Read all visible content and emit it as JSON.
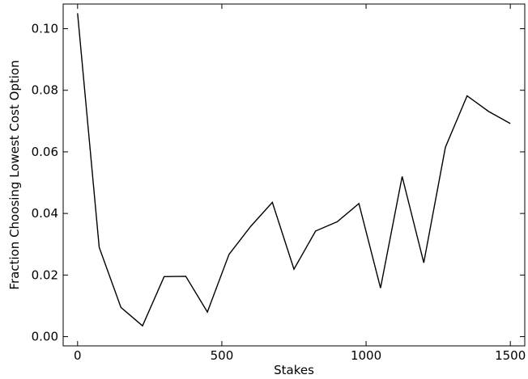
{
  "chart_data": {
    "type": "line",
    "title": "",
    "xlabel": "Stakes",
    "ylabel": "Fraction Choosing Lowest Cost Option",
    "xlim": [
      -50,
      1550
    ],
    "ylim": [
      -0.003,
      0.108
    ],
    "grid": false,
    "legend": "none",
    "line_color": "#000000",
    "xticks": [
      0,
      500,
      1000,
      1500
    ],
    "xtick_labels": [
      "0",
      "500",
      "1000",
      "1500"
    ],
    "yticks": [
      0.0,
      0.02,
      0.04,
      0.06,
      0.08,
      0.1
    ],
    "ytick_labels": [
      "0.00",
      "0.02",
      "0.04",
      "0.06",
      "0.08",
      "0.10"
    ],
    "series": [
      {
        "x": [
          0,
          75,
          150,
          225,
          300,
          375,
          450,
          525,
          600,
          675,
          750,
          825,
          900,
          975,
          1050,
          1125,
          1200,
          1275,
          1350,
          1425,
          1500
        ],
        "y": [
          0.105,
          0.029,
          0.0095,
          0.0035,
          0.0195,
          0.0196,
          0.008,
          0.0267,
          0.0358,
          0.0436,
          0.0219,
          0.0343,
          0.0373,
          0.0432,
          0.0158,
          0.052,
          0.024,
          0.0615,
          0.0782,
          0.0731,
          0.0692
        ]
      }
    ]
  }
}
